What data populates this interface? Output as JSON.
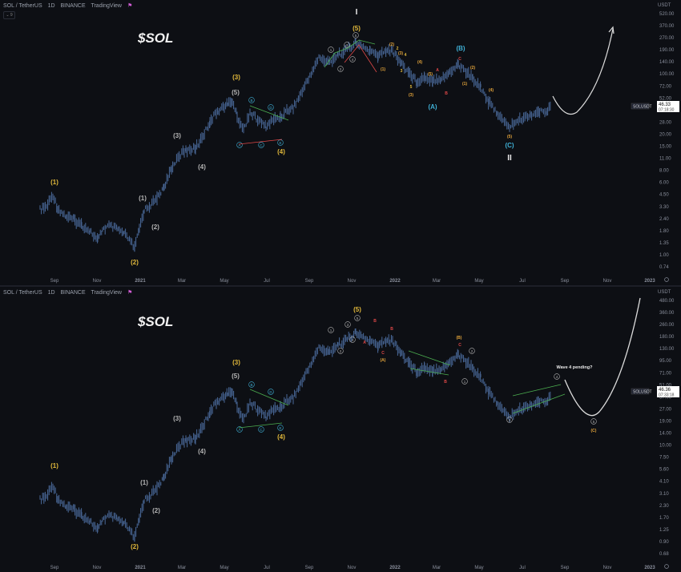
{
  "colors": {
    "background": "#0d0f14",
    "candles": "#4a6a9a",
    "axis_text": "#8a8f9c",
    "wave_yellow": "#e2b93b",
    "wave_gray": "#b4b4b4",
    "wave_cyan": "#3fb0d6",
    "wave_red": "#e04848",
    "trendline_green": "#4caf50",
    "trendline_red": "#e04848",
    "projection": "#dcdcdc",
    "price_label_bg": "#ffffff"
  },
  "panels": [
    {
      "id": "top",
      "header": {
        "symbol": "SOL / TetherUS",
        "interval": "1D",
        "exchange": "BINANCE",
        "platform": "TradingView",
        "indicator_btn": "⌄ 9"
      },
      "title": "$SOL",
      "currency": "USDT",
      "price_label": {
        "symbol": "SOLUSDT",
        "price": "46.33",
        "countdown": "07:18:30"
      },
      "y_ticks": [
        "520.00",
        "370.00",
        "270.00",
        "190.00",
        "140.00",
        "100.00",
        "72.00",
        "52.00",
        "38.00",
        "28.00",
        "20.00",
        "15.00",
        "11.00",
        "8.00",
        "6.00",
        "4.50",
        "3.30",
        "2.40",
        "1.80",
        "1.35",
        "1.00",
        "0.74"
      ],
      "x_ticks": [
        "Sep",
        "Nov",
        "2021",
        "Mar",
        "May",
        "Jul",
        "Sep",
        "Nov",
        "2022",
        "Mar",
        "May",
        "Jul",
        "Sep",
        "Nov",
        "2023"
      ],
      "wave_labels": {
        "w1": "(1)",
        "w2": "(2)",
        "s1": "(1)",
        "s2": "(2)",
        "s3": "(3)",
        "s4": "(4)",
        "s5": "(5)",
        "w3": "(3)",
        "w4": "(4)",
        "w5": "(5)",
        "I": "I",
        "II": "II",
        "cA": "(A)",
        "cB": "(B)",
        "cC": "(C)",
        "tA": "A",
        "tB": "B",
        "tC": "C",
        "tD": "D",
        "tE": "E",
        "m1": "1",
        "m2": "2",
        "m3": "3",
        "m4": "4",
        "m5": "5",
        "y2": "(2)",
        "y3": "(3)",
        "y4": "(4)",
        "y5": "(5)",
        "y1": "(1)",
        "ra": "A",
        "rb": "B",
        "rc": "C",
        "n2": "2",
        "n3": "3",
        "n4": "4",
        "n5": "5",
        "p3": "(3)",
        "p4": "(4)",
        "p5": "(5)",
        "p1": "(1)",
        "p2": "(2)"
      }
    },
    {
      "id": "bottom",
      "header": {
        "symbol": "SOL / TetherUS",
        "interval": "1D",
        "exchange": "BINANCE",
        "platform": "TradingView"
      },
      "title": "$SOL",
      "currency": "USDT",
      "price_label": {
        "symbol": "SOLUSDT",
        "price": "46.36",
        "countdown": "07:33:18"
      },
      "y_ticks": [
        "480.00",
        "360.00",
        "260.00",
        "180.00",
        "130.00",
        "95.00",
        "71.00",
        "51.00",
        "37.00",
        "27.00",
        "19.00",
        "14.00",
        "10.00",
        "7.50",
        "5.60",
        "4.10",
        "3.10",
        "2.30",
        "1.70",
        "1.25",
        "0.90",
        "0.68"
      ],
      "x_ticks": [
        "Sep",
        "Nov",
        "2021",
        "Mar",
        "May",
        "Jul",
        "Sep",
        "Nov",
        "2022",
        "Mar",
        "May",
        "Jul",
        "Sep",
        "Nov",
        "2023"
      ],
      "annotation": "Wave 4 pending?",
      "wave_labels": {
        "w1": "(1)",
        "w2": "(2)",
        "s1": "(1)",
        "s2": "(2)",
        "s3": "(3)",
        "s4": "(4)",
        "s5": "(5)",
        "w3": "(3)",
        "w4": "(4)",
        "w5": "(5)",
        "tA": "A",
        "tB": "B",
        "tC": "C",
        "tD": "D",
        "tE": "E",
        "wA": "(A)",
        "wB": "(B)",
        "wC": "(C)",
        "ra": "A",
        "rb": "B",
        "rc": "C",
        "rd": "B",
        "c1": "1",
        "c2": "2",
        "c3": "3",
        "c4": "4",
        "c5": "5"
      }
    }
  ],
  "chart_data": [
    {
      "type": "line",
      "title": "$SOL",
      "series": [
        {
          "name": "SOL / TetherUS",
          "x": [
            "2020-08",
            "2020-09",
            "2020-10",
            "2020-11",
            "2020-12",
            "2021-01",
            "2021-02",
            "2021-03",
            "2021-04",
            "2021-05",
            "2021-06",
            "2021-07",
            "2021-08",
            "2021-09",
            "2021-10",
            "2021-11",
            "2021-12",
            "2022-01",
            "2022-02",
            "2022-03",
            "2022-04",
            "2022-05",
            "2022-06",
            "2022-07",
            "2022-08"
          ],
          "values": [
            3.5,
            4.0,
            2.8,
            2.0,
            1.6,
            2.5,
            8,
            14,
            30,
            45,
            28,
            25,
            50,
            150,
            180,
            230,
            180,
            140,
            100,
            90,
            120,
            55,
            33,
            38,
            46
          ]
        }
      ],
      "ylabel": "USDT",
      "scale": "log",
      "ylim": [
        0.74,
        520
      ]
    },
    {
      "type": "line",
      "title": "$SOL",
      "series": [
        {
          "name": "SOL / TetherUS",
          "x": [
            "2020-08",
            "2020-09",
            "2020-10",
            "2020-11",
            "2020-12",
            "2021-01",
            "2021-02",
            "2021-03",
            "2021-04",
            "2021-05",
            "2021-06",
            "2021-07",
            "2021-08",
            "2021-09",
            "2021-10",
            "2021-11",
            "2021-12",
            "2022-01",
            "2022-02",
            "2022-03",
            "2022-04",
            "2022-05",
            "2022-06",
            "2022-07",
            "2022-08"
          ],
          "values": [
            3.5,
            4.0,
            2.8,
            2.0,
            1.6,
            2.5,
            8,
            14,
            30,
            45,
            28,
            25,
            50,
            150,
            180,
            230,
            180,
            140,
            100,
            90,
            120,
            55,
            33,
            38,
            46
          ]
        }
      ],
      "ylabel": "USDT",
      "scale": "log",
      "ylim": [
        0.68,
        480
      ]
    }
  ]
}
